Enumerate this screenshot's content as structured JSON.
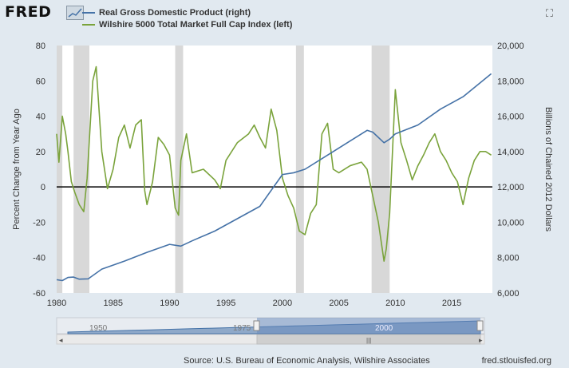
{
  "header": {
    "logo": "FRED",
    "logo_icon": "chart-line-icon",
    "expand_icon": "expand-icon"
  },
  "legend": {
    "items": [
      {
        "label": "Real Gross Domestic Product (right)",
        "color": "#4572a7"
      },
      {
        "label": "Wilshire 5000 Total Market Full Cap Index (left)",
        "color": "#7aa33b"
      }
    ]
  },
  "colors": {
    "gdp": "#4572a7",
    "wilshire": "#7aa33b",
    "recession": "#d8d8d8",
    "zero_line": "#000000",
    "plot_bg": "#ffffff"
  },
  "chart_data": {
    "type": "line",
    "x_range": [
      1980,
      2018.6
    ],
    "x_ticks": [
      1980,
      1985,
      1990,
      1995,
      2000,
      2005,
      2010,
      2015
    ],
    "x_tick_labels": [
      "1980",
      "1985",
      "1990",
      "1995",
      "2000",
      "2005",
      "2010",
      "2015"
    ],
    "ylabel_left": "Percent Change from Year Ago",
    "ylabel_right": "Billions of Chained 2012 Dollars",
    "ylim_left": [
      -60,
      80
    ],
    "ylim_right": [
      6000,
      20000
    ],
    "y_ticks_left": [
      "-60",
      "-40",
      "-20",
      "0",
      "20",
      "40",
      "60",
      "80"
    ],
    "y_ticks_right": [
      "6,000",
      "8,000",
      "10,000",
      "12,000",
      "14,000",
      "16,000",
      "18,000",
      "20,000"
    ],
    "recessions": [
      [
        1980.0,
        1980.5
      ],
      [
        1981.5,
        1982.9
      ],
      [
        1990.5,
        1991.2
      ],
      [
        2001.2,
        2001.9
      ],
      [
        2007.9,
        2009.5
      ]
    ],
    "series": [
      {
        "name": "Real Gross Domestic Product (right)",
        "axis": "right",
        "x": [
          1980,
          1980.5,
          1981,
          1981.5,
          1982,
          1982.8,
          1984,
          1986,
          1988,
          1990,
          1991,
          1992,
          1994,
          1996,
          1998,
          2000,
          2001,
          2002,
          2004,
          2006,
          2007.5,
          2008,
          2009,
          2009.5,
          2010,
          2012,
          2014,
          2016,
          2018.5
        ],
        "y": [
          6750,
          6700,
          6880,
          6900,
          6780,
          6800,
          7350,
          7800,
          8300,
          8750,
          8650,
          8950,
          9500,
          10200,
          10900,
          12700,
          12800,
          13000,
          13800,
          14600,
          15200,
          15100,
          14500,
          14700,
          15000,
          15500,
          16400,
          17100,
          18400
        ]
      },
      {
        "name": "Wilshire 5000 Total Market Full Cap Index (left)",
        "axis": "left",
        "x": [
          1980,
          1980.2,
          1980.5,
          1980.8,
          1981,
          1981.3,
          1981.6,
          1982,
          1982.4,
          1982.7,
          1983.2,
          1983.5,
          1984,
          1984.5,
          1985,
          1985.5,
          1986,
          1986.5,
          1987,
          1987.5,
          1987.8,
          1988,
          1988.5,
          1989,
          1989.5,
          1990,
          1990.5,
          1990.8,
          1991,
          1991.5,
          1992,
          1993,
          1994,
          1994.5,
          1995,
          1996,
          1997,
          1997.5,
          1998,
          1998.5,
          1999,
          1999.5,
          2000,
          2000.5,
          2001,
          2001.5,
          2002,
          2002.5,
          2003,
          2003.5,
          2004,
          2004.5,
          2005,
          2006,
          2007,
          2007.5,
          2008,
          2008.5,
          2009,
          2009.2,
          2009.5,
          2010,
          2010.5,
          2011,
          2011.5,
          2012,
          2012.5,
          2013,
          2013.5,
          2014,
          2014.5,
          2015,
          2015.5,
          2016,
          2016.5,
          2017,
          2017.5,
          2018,
          2018.5
        ],
        "y": [
          30,
          14,
          40,
          30,
          20,
          3,
          -3,
          -10,
          -14,
          5,
          60,
          68,
          20,
          -1,
          10,
          28,
          35,
          22,
          35,
          38,
          -2,
          -10,
          3,
          28,
          24,
          18,
          -12,
          -16,
          15,
          30,
          8,
          10,
          4,
          -1,
          15,
          25,
          30,
          35,
          28,
          22,
          44,
          32,
          5,
          -5,
          -12,
          -25,
          -27,
          -15,
          -10,
          30,
          36,
          10,
          8,
          12,
          14,
          10,
          -5,
          -20,
          -42,
          -35,
          -15,
          55,
          25,
          15,
          4,
          12,
          18,
          25,
          30,
          20,
          15,
          8,
          3,
          -10,
          5,
          15,
          20,
          20,
          18
        ]
      }
    ]
  },
  "navigator": {
    "labels": [
      "1950",
      "1975",
      "2000"
    ],
    "scroll_grip": "|||"
  },
  "footer": {
    "source": "Source: U.S. Bureau of Economic Analysis, Wilshire Associates",
    "site": "fred.stlouisfed.org"
  }
}
